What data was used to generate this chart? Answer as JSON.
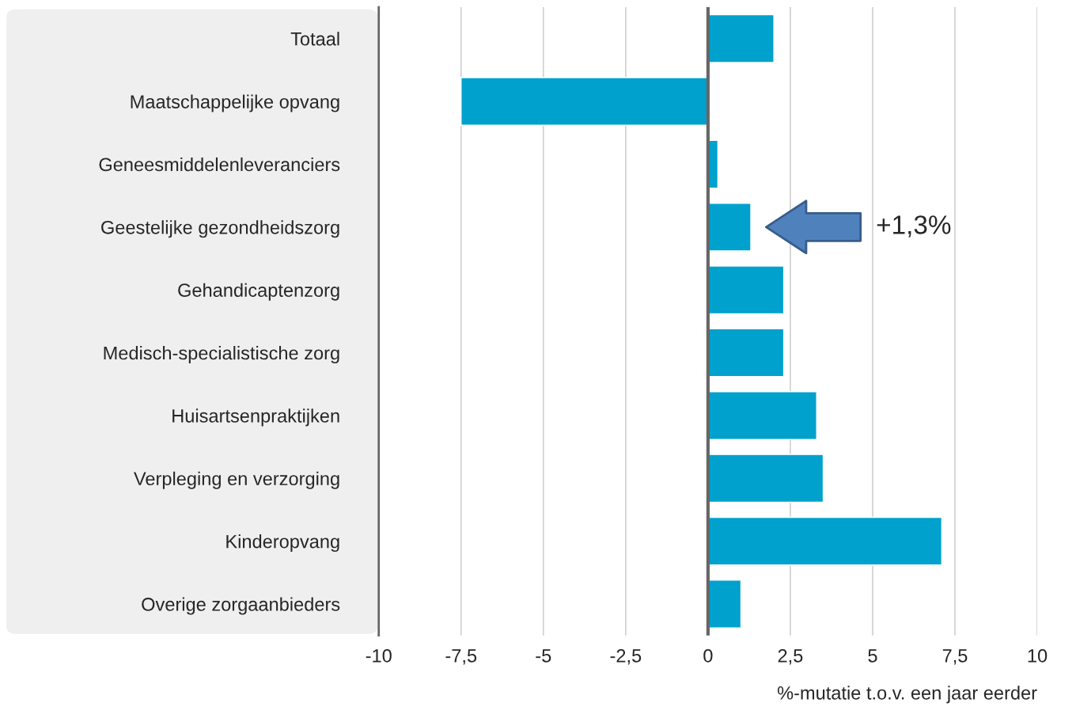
{
  "chart_data": {
    "type": "bar",
    "orientation": "horizontal",
    "categories": [
      "Totaal",
      "Maatschappelijke opvang",
      "Geneesmiddelenleveranciers",
      "Geestelijke gezondheidszorg",
      "Gehandicaptenzorg",
      "Medisch-specialistische zorg",
      "Huisartsenpraktijken",
      "Verpleging en verzorging",
      "Kinderopvang",
      "Overige zorgaanbieders"
    ],
    "values": [
      2.0,
      -7.5,
      0.3,
      1.3,
      2.3,
      2.3,
      3.3,
      3.5,
      7.1,
      1.0
    ],
    "color": "#00a1cd",
    "xlabel": "%-mutatie t.o.v. een jaar eerder",
    "xlim": [
      -10,
      10
    ],
    "xticks": [
      {
        "value": -10,
        "label": "-10"
      },
      {
        "value": -7.5,
        "label": "-7,5"
      },
      {
        "value": -5,
        "label": "-5"
      },
      {
        "value": -2.5,
        "label": "-2,5"
      },
      0,
      {
        "value": 2.5,
        "label": "2,5"
      },
      5,
      {
        "value": 7.5,
        "label": "7,5"
      },
      10
    ],
    "grid": "x",
    "annotations": [
      "+1,3%"
    ]
  }
}
